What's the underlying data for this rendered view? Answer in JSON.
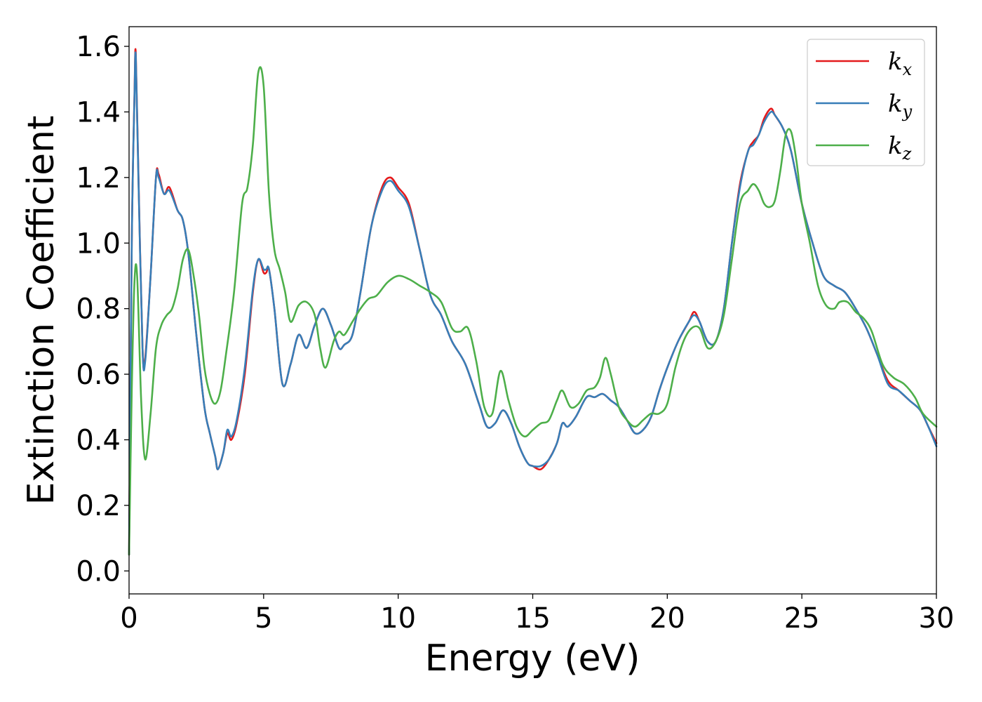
{
  "chart_data": {
    "type": "line",
    "xlabel": "Energy (eV)",
    "ylabel": "Extinction Coefficient",
    "xlim": [
      0,
      30
    ],
    "ylim": [
      -0.07,
      1.66
    ],
    "xticks": [
      "0",
      "5",
      "10",
      "15",
      "20",
      "25",
      "30"
    ],
    "yticks": [
      "0.0",
      "0.2",
      "0.4",
      "0.6",
      "0.8",
      "1.0",
      "1.2",
      "1.4",
      "1.6"
    ],
    "grid": false,
    "legend_position": "top-right",
    "series": [
      {
        "name": "k_x",
        "legend_base": "k",
        "legend_sub": "x",
        "color": "#e41a1c",
        "x": [
          0,
          0.1,
          0.2,
          0.25,
          0.35,
          0.5,
          0.6,
          0.8,
          1.0,
          1.1,
          1.3,
          1.5,
          1.8,
          2.0,
          2.2,
          2.5,
          2.8,
          3.0,
          3.2,
          3.3,
          3.5,
          3.65,
          3.8,
          4.0,
          4.3,
          4.6,
          4.8,
          5.0,
          5.1,
          5.2,
          5.4,
          5.7,
          6.0,
          6.3,
          6.6,
          6.9,
          7.2,
          7.5,
          7.8,
          8.0,
          8.3,
          8.6,
          9.0,
          9.4,
          9.7,
          10.0,
          10.4,
          10.8,
          11.2,
          11.6,
          12.0,
          12.5,
          13.0,
          13.3,
          13.6,
          13.9,
          14.2,
          14.5,
          14.8,
          15.0,
          15.3,
          15.6,
          15.9,
          16.1,
          16.3,
          16.6,
          17.0,
          17.3,
          17.6,
          17.9,
          18.2,
          18.5,
          18.8,
          19.1,
          19.4,
          19.7,
          20.0,
          20.4,
          20.8,
          21.0,
          21.2,
          21.5,
          21.8,
          22.1,
          22.4,
          22.7,
          23.0,
          23.2,
          23.4,
          23.6,
          23.85,
          24.0,
          24.3,
          24.6,
          25.0,
          25.4,
          25.8,
          26.2,
          26.6,
          27.0,
          27.4,
          27.8,
          28.2,
          28.6,
          29.0,
          29.4,
          29.7,
          30.0
        ],
        "y": [
          0.05,
          1.0,
          1.45,
          1.58,
          1.2,
          0.68,
          0.65,
          0.9,
          1.2,
          1.21,
          1.15,
          1.17,
          1.1,
          1.07,
          0.97,
          0.72,
          0.5,
          0.42,
          0.35,
          0.31,
          0.36,
          0.42,
          0.4,
          0.45,
          0.6,
          0.85,
          0.95,
          0.91,
          0.91,
          0.92,
          0.8,
          0.57,
          0.63,
          0.72,
          0.68,
          0.75,
          0.8,
          0.75,
          0.68,
          0.69,
          0.72,
          0.85,
          1.05,
          1.17,
          1.2,
          1.17,
          1.12,
          0.98,
          0.84,
          0.78,
          0.7,
          0.63,
          0.51,
          0.44,
          0.45,
          0.49,
          0.45,
          0.38,
          0.33,
          0.32,
          0.31,
          0.34,
          0.39,
          0.45,
          0.44,
          0.47,
          0.53,
          0.53,
          0.54,
          0.52,
          0.5,
          0.46,
          0.42,
          0.43,
          0.47,
          0.55,
          0.62,
          0.7,
          0.76,
          0.79,
          0.76,
          0.7,
          0.7,
          0.8,
          1.0,
          1.18,
          1.28,
          1.31,
          1.33,
          1.38,
          1.41,
          1.39,
          1.35,
          1.28,
          1.12,
          1.0,
          0.9,
          0.87,
          0.85,
          0.8,
          0.74,
          0.66,
          0.58,
          0.55,
          0.52,
          0.49,
          0.44,
          0.39
        ]
      },
      {
        "name": "k_y",
        "legend_base": "k",
        "legend_sub": "y",
        "color": "#377eb8",
        "x": [
          0,
          0.1,
          0.2,
          0.25,
          0.35,
          0.5,
          0.6,
          0.8,
          1.0,
          1.1,
          1.3,
          1.5,
          1.8,
          2.0,
          2.2,
          2.5,
          2.8,
          3.0,
          3.2,
          3.3,
          3.5,
          3.65,
          3.8,
          4.0,
          4.3,
          4.6,
          4.8,
          5.0,
          5.1,
          5.2,
          5.4,
          5.7,
          6.0,
          6.3,
          6.6,
          6.9,
          7.2,
          7.5,
          7.8,
          8.0,
          8.3,
          8.6,
          9.0,
          9.4,
          9.7,
          10.0,
          10.4,
          10.8,
          11.2,
          11.6,
          12.0,
          12.5,
          13.0,
          13.3,
          13.6,
          13.9,
          14.2,
          14.5,
          14.8,
          15.0,
          15.3,
          15.6,
          15.9,
          16.1,
          16.3,
          16.6,
          17.0,
          17.3,
          17.6,
          17.9,
          18.2,
          18.5,
          18.8,
          19.1,
          19.4,
          19.7,
          20.0,
          20.4,
          20.8,
          21.0,
          21.2,
          21.5,
          21.8,
          22.1,
          22.4,
          22.7,
          23.0,
          23.2,
          23.4,
          23.6,
          23.85,
          24.0,
          24.3,
          24.6,
          25.0,
          25.4,
          25.8,
          26.2,
          26.6,
          27.0,
          27.4,
          27.8,
          28.2,
          28.6,
          29.0,
          29.4,
          29.7,
          30.0
        ],
        "y": [
          0.05,
          1.0,
          1.44,
          1.57,
          1.19,
          0.68,
          0.64,
          0.9,
          1.2,
          1.2,
          1.15,
          1.16,
          1.1,
          1.07,
          0.97,
          0.72,
          0.5,
          0.42,
          0.35,
          0.31,
          0.36,
          0.43,
          0.41,
          0.46,
          0.62,
          0.86,
          0.95,
          0.92,
          0.92,
          0.92,
          0.8,
          0.57,
          0.63,
          0.72,
          0.68,
          0.75,
          0.8,
          0.75,
          0.68,
          0.69,
          0.72,
          0.85,
          1.05,
          1.16,
          1.19,
          1.16,
          1.11,
          0.98,
          0.84,
          0.78,
          0.7,
          0.63,
          0.51,
          0.44,
          0.45,
          0.49,
          0.45,
          0.38,
          0.33,
          0.32,
          0.32,
          0.34,
          0.39,
          0.45,
          0.44,
          0.47,
          0.53,
          0.53,
          0.54,
          0.52,
          0.5,
          0.46,
          0.42,
          0.43,
          0.47,
          0.55,
          0.62,
          0.7,
          0.76,
          0.78,
          0.76,
          0.7,
          0.7,
          0.8,
          1.0,
          1.17,
          1.28,
          1.3,
          1.33,
          1.37,
          1.4,
          1.39,
          1.35,
          1.28,
          1.12,
          1.0,
          0.9,
          0.87,
          0.85,
          0.8,
          0.74,
          0.66,
          0.57,
          0.55,
          0.52,
          0.49,
          0.44,
          0.38
        ]
      },
      {
        "name": "k_z",
        "legend_base": "k",
        "legend_sub": "z",
        "color": "#4daf4a",
        "x": [
          0,
          0.1,
          0.2,
          0.3,
          0.45,
          0.6,
          0.8,
          1.0,
          1.2,
          1.4,
          1.6,
          1.8,
          2.0,
          2.2,
          2.4,
          2.6,
          2.8,
          3.0,
          3.2,
          3.4,
          3.6,
          3.9,
          4.2,
          4.4,
          4.6,
          4.8,
          5.0,
          5.2,
          5.4,
          5.6,
          5.8,
          6.0,
          6.3,
          6.6,
          6.9,
          7.1,
          7.3,
          7.6,
          7.8,
          8.0,
          8.3,
          8.6,
          8.9,
          9.2,
          9.6,
          10.0,
          10.4,
          10.8,
          11.2,
          11.6,
          12.0,
          12.3,
          12.6,
          12.9,
          13.2,
          13.5,
          13.8,
          14.1,
          14.4,
          14.7,
          15.0,
          15.3,
          15.6,
          15.9,
          16.1,
          16.4,
          16.7,
          17.0,
          17.3,
          17.5,
          17.7,
          17.9,
          18.2,
          18.5,
          18.8,
          19.1,
          19.4,
          19.7,
          20.0,
          20.3,
          20.6,
          20.9,
          21.2,
          21.5,
          21.8,
          22.1,
          22.4,
          22.7,
          23.0,
          23.2,
          23.4,
          23.6,
          23.8,
          24.0,
          24.2,
          24.4,
          24.6,
          24.8,
          25.0,
          25.3,
          25.6,
          25.9,
          26.2,
          26.4,
          26.7,
          27.0,
          27.3,
          27.6,
          28.0,
          28.4,
          28.8,
          29.2,
          29.5,
          30.0
        ],
        "y": [
          0.05,
          0.55,
          0.88,
          0.9,
          0.52,
          0.34,
          0.48,
          0.68,
          0.75,
          0.78,
          0.8,
          0.86,
          0.95,
          0.98,
          0.9,
          0.78,
          0.62,
          0.54,
          0.51,
          0.55,
          0.66,
          0.85,
          1.12,
          1.17,
          1.3,
          1.52,
          1.48,
          1.15,
          0.98,
          0.92,
          0.85,
          0.76,
          0.81,
          0.82,
          0.78,
          0.68,
          0.62,
          0.7,
          0.73,
          0.72,
          0.76,
          0.8,
          0.83,
          0.84,
          0.88,
          0.9,
          0.89,
          0.87,
          0.85,
          0.82,
          0.74,
          0.73,
          0.74,
          0.64,
          0.5,
          0.48,
          0.61,
          0.52,
          0.44,
          0.41,
          0.43,
          0.45,
          0.46,
          0.52,
          0.55,
          0.5,
          0.51,
          0.55,
          0.56,
          0.59,
          0.65,
          0.6,
          0.5,
          0.46,
          0.44,
          0.46,
          0.48,
          0.48,
          0.51,
          0.62,
          0.7,
          0.74,
          0.74,
          0.68,
          0.7,
          0.78,
          0.95,
          1.12,
          1.16,
          1.18,
          1.16,
          1.12,
          1.11,
          1.13,
          1.22,
          1.33,
          1.34,
          1.25,
          1.12,
          1.0,
          0.87,
          0.81,
          0.8,
          0.82,
          0.82,
          0.79,
          0.77,
          0.73,
          0.63,
          0.59,
          0.57,
          0.53,
          0.48,
          0.44
        ]
      }
    ]
  }
}
